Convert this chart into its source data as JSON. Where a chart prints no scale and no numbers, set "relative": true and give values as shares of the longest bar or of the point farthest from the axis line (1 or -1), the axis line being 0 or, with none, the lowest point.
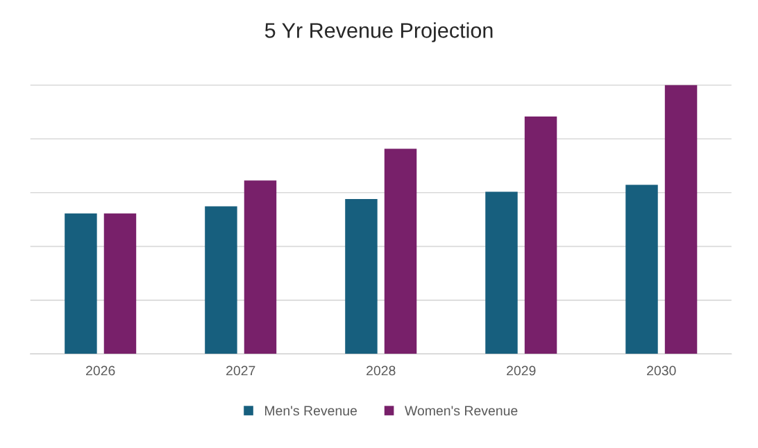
{
  "chart_data": {
    "type": "bar",
    "title": "5 Yr Revenue Projection",
    "relative": true,
    "categories": [
      "2026",
      "2027",
      "2028",
      "2029",
      "2030"
    ],
    "series": [
      {
        "name": "Men's Revenue",
        "color": "#175f7e",
        "values": [
          0.523,
          0.549,
          0.576,
          0.603,
          0.629
        ]
      },
      {
        "name": "Women's Revenue",
        "color": "#78206a",
        "values": [
          0.523,
          0.645,
          0.763,
          0.883,
          1.0
        ]
      }
    ],
    "grid": "y",
    "legend": "bottom"
  }
}
